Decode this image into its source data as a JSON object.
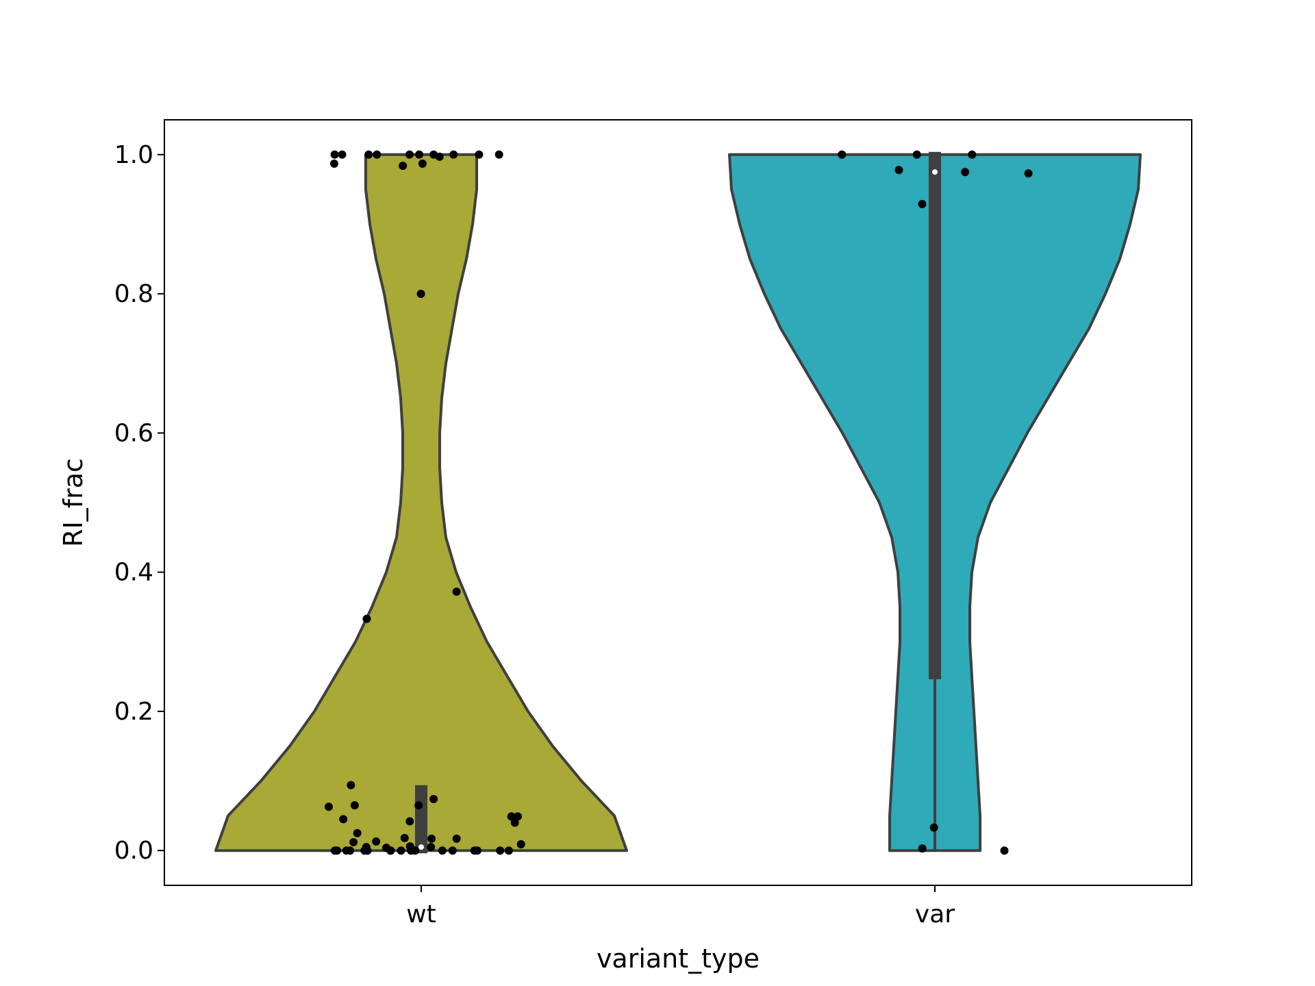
{
  "chart_data": {
    "type": "violin",
    "xlabel": "variant_type",
    "ylabel": "RI_frac",
    "categories": [
      "wt",
      "var"
    ],
    "ylim": [
      -0.05,
      1.05
    ],
    "yticks": [
      0.0,
      0.2,
      0.4,
      0.6,
      0.8,
      1.0
    ],
    "ytick_labels": [
      "0.0",
      "0.2",
      "0.4",
      "0.6",
      "0.8",
      "1.0"
    ],
    "grid": false,
    "legend": "none",
    "colors": {
      "wt": "#a8a936",
      "var": "#2eaab9",
      "outline": "#3f3f3f",
      "points": "#000000",
      "median": "#ffffff"
    },
    "groups": [
      {
        "name": "wt",
        "quartiles": {
          "q1": 0.0,
          "median": 0.005,
          "q3": 0.09
        },
        "whiskers": [
          0.0,
          0.09
        ],
        "density": [
          {
            "y": 0.0,
            "w": 1.0
          },
          {
            "y": 0.05,
            "w": 0.94
          },
          {
            "y": 0.1,
            "w": 0.78
          },
          {
            "y": 0.15,
            "w": 0.64
          },
          {
            "y": 0.2,
            "w": 0.52
          },
          {
            "y": 0.25,
            "w": 0.42
          },
          {
            "y": 0.3,
            "w": 0.32
          },
          {
            "y": 0.35,
            "w": 0.24
          },
          {
            "y": 0.4,
            "w": 0.17
          },
          {
            "y": 0.45,
            "w": 0.12
          },
          {
            "y": 0.5,
            "w": 0.1
          },
          {
            "y": 0.55,
            "w": 0.09
          },
          {
            "y": 0.6,
            "w": 0.09
          },
          {
            "y": 0.65,
            "w": 0.1
          },
          {
            "y": 0.7,
            "w": 0.12
          },
          {
            "y": 0.75,
            "w": 0.15
          },
          {
            "y": 0.8,
            "w": 0.18
          },
          {
            "y": 0.85,
            "w": 0.22
          },
          {
            "y": 0.9,
            "w": 0.25
          },
          {
            "y": 0.95,
            "w": 0.27
          },
          {
            "y": 1.0,
            "w": 0.27
          }
        ],
        "points": [
          1.0,
          1.0,
          1.0,
          1.0,
          1.0,
          0.987,
          1.0,
          1.0,
          0.997,
          0.984,
          1.0,
          1.0,
          1.0,
          0.987,
          0.8,
          0.333,
          0.372,
          0.094,
          0.074,
          0.065,
          0.065,
          0.063,
          0.049,
          0.049,
          0.045,
          0.042,
          0.04,
          0.025,
          0.018,
          0.017,
          0.017,
          0.013,
          0.012,
          0.009,
          0.006,
          0.005,
          0.005,
          0.004,
          0.0,
          0.0,
          0.0,
          0.0,
          0.0,
          0.0,
          0.0,
          0.0,
          0.0,
          0.0,
          0.0,
          0.0,
          0.0,
          0.0,
          0.0,
          0.0,
          0.0,
          0.0
        ]
      },
      {
        "name": "var",
        "quartiles": {
          "q1": 0.25,
          "median": 0.975,
          "q3": 1.0
        },
        "whiskers": [
          0.0,
          1.0
        ],
        "density": [
          {
            "y": 0.0,
            "w": 0.22
          },
          {
            "y": 0.05,
            "w": 0.22
          },
          {
            "y": 0.1,
            "w": 0.21
          },
          {
            "y": 0.15,
            "w": 0.2
          },
          {
            "y": 0.2,
            "w": 0.19
          },
          {
            "y": 0.25,
            "w": 0.18
          },
          {
            "y": 0.3,
            "w": 0.17
          },
          {
            "y": 0.35,
            "w": 0.17
          },
          {
            "y": 0.4,
            "w": 0.18
          },
          {
            "y": 0.45,
            "w": 0.21
          },
          {
            "y": 0.5,
            "w": 0.27
          },
          {
            "y": 0.55,
            "w": 0.36
          },
          {
            "y": 0.6,
            "w": 0.45
          },
          {
            "y": 0.65,
            "w": 0.55
          },
          {
            "y": 0.7,
            "w": 0.65
          },
          {
            "y": 0.75,
            "w": 0.75
          },
          {
            "y": 0.8,
            "w": 0.83
          },
          {
            "y": 0.85,
            "w": 0.9
          },
          {
            "y": 0.9,
            "w": 0.95
          },
          {
            "y": 0.95,
            "w": 0.99
          },
          {
            "y": 1.0,
            "w": 1.0
          }
        ],
        "points": [
          1.0,
          1.0,
          1.0,
          0.975,
          0.973,
          0.978,
          0.929,
          0.033,
          0.003,
          0.0
        ]
      }
    ]
  }
}
